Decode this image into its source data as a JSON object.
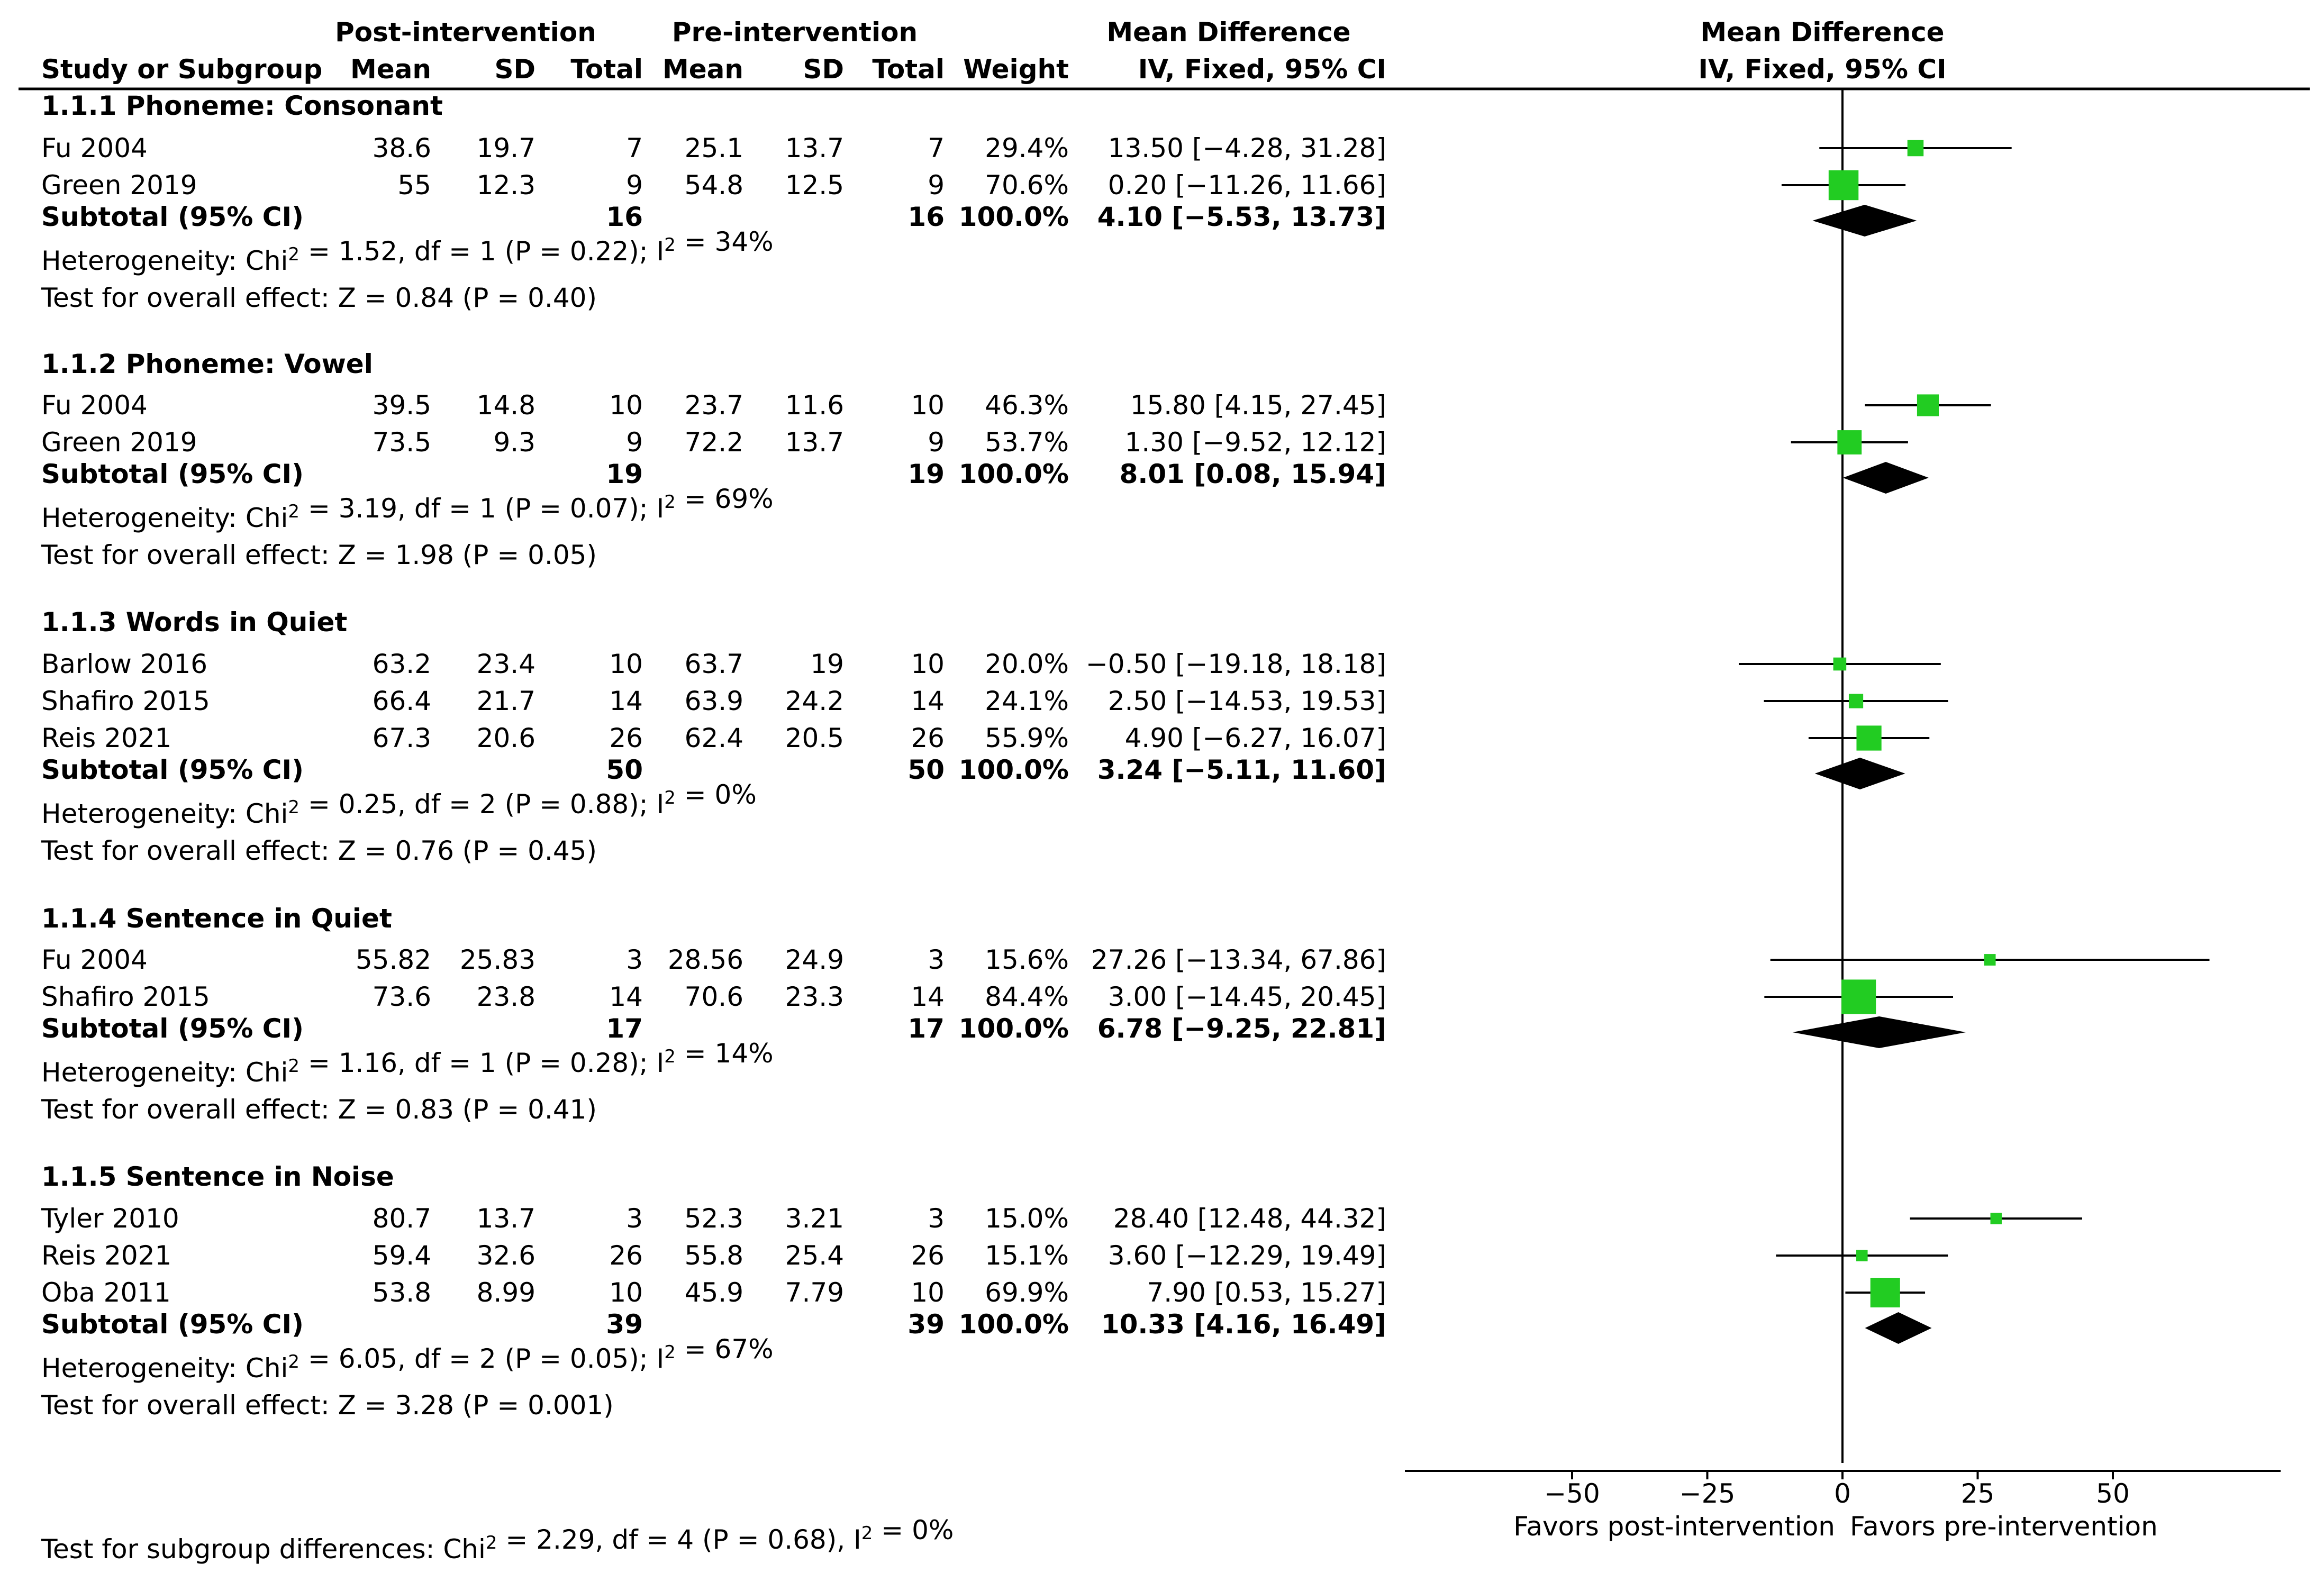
{
  "header": {
    "group_post": "Post-intervention",
    "group_pre": "Pre-intervention",
    "effect_title": "Mean Difference",
    "plot_title": "Mean Difference",
    "col_study": "Study or Subgroup",
    "col_mean": "Mean",
    "col_sd": "SD",
    "col_total": "Total",
    "col_weight": "Weight",
    "col_ci": "IV, Fixed, 95% CI",
    "plot_ci": "IV, Fixed, 95% CI"
  },
  "chart_data": {
    "type": "forest",
    "x_axis": {
      "min": -75,
      "max": 85,
      "ticks": [
        -50,
        -25,
        0,
        25,
        50
      ],
      "tick_labels": [
        "−50",
        "−25",
        "0",
        "25",
        "50"
      ]
    },
    "favors_left": "Favors post-intervention",
    "favors_right": "Favors pre-intervention",
    "subgroups": [
      {
        "title": "1.1.1 Phoneme: Consonant",
        "studies": [
          {
            "name": "Fu 2004",
            "post_mean": "38.6",
            "post_sd": "19.7",
            "post_total": "7",
            "pre_mean": "25.1",
            "pre_sd": "13.7",
            "pre_total": "7",
            "weight_label": "29.4%",
            "ci_label": "13.50 [−4.28, 31.28]",
            "md": 13.5,
            "lo": -4.28,
            "hi": 31.28,
            "weight": 29.4
          },
          {
            "name": "Green 2019",
            "post_mean": "55",
            "post_sd": "12.3",
            "post_total": "9",
            "pre_mean": "54.8",
            "pre_sd": "12.5",
            "pre_total": "9",
            "weight_label": "70.6%",
            "ci_label": "0.20 [−11.26, 11.66]",
            "md": 0.2,
            "lo": -11.26,
            "hi": 11.66,
            "weight": 70.6
          }
        ],
        "subtotal": {
          "label": "Subtotal (95% CI)",
          "post_total": "16",
          "pre_total": "16",
          "weight_label": "100.0%",
          "ci_label": "4.10 [−5.53, 13.73]",
          "md": 4.1,
          "lo": -5.53,
          "hi": 13.73
        },
        "heterogeneity": {
          "prefix": "Heterogeneity: Chi",
          "sup1": "2",
          "mid": " = 1.52, df = 1 (P = 0.22); I",
          "sup2": "2",
          "suffix": " = 34%"
        },
        "overall": "Test for overall effect: Z = 0.84 (P = 0.40)"
      },
      {
        "title": "1.1.2 Phoneme: Vowel",
        "studies": [
          {
            "name": "Fu 2004",
            "post_mean": "39.5",
            "post_sd": "14.8",
            "post_total": "10",
            "pre_mean": "23.7",
            "pre_sd": "11.6",
            "pre_total": "10",
            "weight_label": "46.3%",
            "ci_label": "15.80 [4.15, 27.45]",
            "md": 15.8,
            "lo": 4.15,
            "hi": 27.45,
            "weight": 46.3
          },
          {
            "name": "Green 2019",
            "post_mean": "73.5",
            "post_sd": "9.3",
            "post_total": "9",
            "pre_mean": "72.2",
            "pre_sd": "13.7",
            "pre_total": "9",
            "weight_label": "53.7%",
            "ci_label": "1.30 [−9.52, 12.12]",
            "md": 1.3,
            "lo": -9.52,
            "hi": 12.12,
            "weight": 53.7
          }
        ],
        "subtotal": {
          "label": "Subtotal (95% CI)",
          "post_total": "19",
          "pre_total": "19",
          "weight_label": "100.0%",
          "ci_label": "8.01 [0.08, 15.94]",
          "md": 8.01,
          "lo": 0.08,
          "hi": 15.94
        },
        "heterogeneity": {
          "prefix": "Heterogeneity: Chi",
          "sup1": "2",
          "mid": " = 3.19, df = 1 (P = 0.07); I",
          "sup2": "2",
          "suffix": " = 69%"
        },
        "overall": "Test for overall effect: Z = 1.98 (P = 0.05)"
      },
      {
        "title": "1.1.3 Words in Quiet",
        "studies": [
          {
            "name": "Barlow 2016",
            "post_mean": "63.2",
            "post_sd": "23.4",
            "post_total": "10",
            "pre_mean": "63.7",
            "pre_sd": "19",
            "pre_total": "10",
            "weight_label": "20.0%",
            "ci_label": "−0.50 [−19.18, 18.18]",
            "md": -0.5,
            "lo": -19.18,
            "hi": 18.18,
            "weight": 20.0
          },
          {
            "name": "Shafiro 2015",
            "post_mean": "66.4",
            "post_sd": "21.7",
            "post_total": "14",
            "pre_mean": "63.9",
            "pre_sd": "24.2",
            "pre_total": "14",
            "weight_label": "24.1%",
            "ci_label": "2.50 [−14.53, 19.53]",
            "md": 2.5,
            "lo": -14.53,
            "hi": 19.53,
            "weight": 24.1
          },
          {
            "name": "Reis 2021",
            "post_mean": "67.3",
            "post_sd": "20.6",
            "post_total": "26",
            "pre_mean": "62.4",
            "pre_sd": "20.5",
            "pre_total": "26",
            "weight_label": "55.9%",
            "ci_label": "4.90 [−6.27, 16.07]",
            "md": 4.9,
            "lo": -6.27,
            "hi": 16.07,
            "weight": 55.9
          }
        ],
        "subtotal": {
          "label": "Subtotal (95% CI)",
          "post_total": "50",
          "pre_total": "50",
          "weight_label": "100.0%",
          "ci_label": "3.24 [−5.11, 11.60]",
          "md": 3.24,
          "lo": -5.11,
          "hi": 11.6
        },
        "heterogeneity": {
          "prefix": "Heterogeneity: Chi",
          "sup1": "2",
          "mid": " = 0.25, df = 2 (P = 0.88); I",
          "sup2": "2",
          "suffix": " = 0%"
        },
        "overall": "Test for overall effect: Z = 0.76 (P = 0.45)"
      },
      {
        "title": "1.1.4 Sentence in Quiet",
        "studies": [
          {
            "name": "Fu 2004",
            "post_mean": "55.82",
            "post_sd": "25.83",
            "post_total": "3",
            "pre_mean": "28.56",
            "pre_sd": "24.9",
            "pre_total": "3",
            "weight_label": "15.6%",
            "ci_label": "27.26 [−13.34, 67.86]",
            "md": 27.26,
            "lo": -13.34,
            "hi": 67.86,
            "weight": 15.6
          },
          {
            "name": "Shafiro 2015",
            "post_mean": "73.6",
            "post_sd": "23.8",
            "post_total": "14",
            "pre_mean": "70.6",
            "pre_sd": "23.3",
            "pre_total": "14",
            "weight_label": "84.4%",
            "ci_label": "3.00 [−14.45, 20.45]",
            "md": 3.0,
            "lo": -14.45,
            "hi": 20.45,
            "weight": 84.4
          }
        ],
        "subtotal": {
          "label": "Subtotal (95% CI)",
          "post_total": "17",
          "pre_total": "17",
          "weight_label": "100.0%",
          "ci_label": "6.78 [−9.25, 22.81]",
          "md": 6.78,
          "lo": -9.25,
          "hi": 22.81
        },
        "heterogeneity": {
          "prefix": "Heterogeneity: Chi",
          "sup1": "2",
          "mid": " = 1.16, df = 1 (P = 0.28); I",
          "sup2": "2",
          "suffix": " = 14%"
        },
        "overall": "Test for overall effect: Z = 0.83 (P = 0.41)"
      },
      {
        "title": "1.1.5 Sentence in Noise",
        "studies": [
          {
            "name": "Tyler 2010",
            "post_mean": "80.7",
            "post_sd": "13.7",
            "post_total": "3",
            "pre_mean": "52.3",
            "pre_sd": "3.21",
            "pre_total": "3",
            "weight_label": "15.0%",
            "ci_label": "28.40 [12.48, 44.32]",
            "md": 28.4,
            "lo": 12.48,
            "hi": 44.32,
            "weight": 15.0
          },
          {
            "name": "Reis 2021",
            "post_mean": "59.4",
            "post_sd": "32.6",
            "post_total": "26",
            "pre_mean": "55.8",
            "pre_sd": "25.4",
            "pre_total": "26",
            "weight_label": "15.1%",
            "ci_label": "3.60 [−12.29, 19.49]",
            "md": 3.6,
            "lo": -12.29,
            "hi": 19.49,
            "weight": 15.1
          },
          {
            "name": "Oba 2011",
            "post_mean": "53.8",
            "post_sd": "8.99",
            "post_total": "10",
            "pre_mean": "45.9",
            "pre_sd": "7.79",
            "pre_total": "10",
            "weight_label": "69.9%",
            "ci_label": "7.90 [0.53, 15.27]",
            "md": 7.9,
            "lo": 0.53,
            "hi": 15.27,
            "weight": 69.9
          }
        ],
        "subtotal": {
          "label": "Subtotal (95% CI)",
          "post_total": "39",
          "pre_total": "39",
          "weight_label": "100.0%",
          "ci_label": "10.33 [4.16, 16.49]",
          "md": 10.33,
          "lo": 4.16,
          "hi": 16.49
        },
        "heterogeneity": {
          "prefix": "Heterogeneity: Chi",
          "sup1": "2",
          "mid": " = 6.05, df = 2 (P = 0.05); I",
          "sup2": "2",
          "suffix": " = 67%"
        },
        "overall": "Test for overall effect: Z = 3.28 (P = 0.001)"
      }
    ],
    "subgroup_test": {
      "prefix": "Test for subgroup differences: Chi",
      "sup1": "2",
      "mid": " = 2.29, df = 4 (P = 0.68), I",
      "sup2": "2",
      "suffix": " = 0%"
    }
  },
  "colors": {
    "marker": "#22cc22",
    "diamond": "#000000",
    "line": "#000000"
  }
}
